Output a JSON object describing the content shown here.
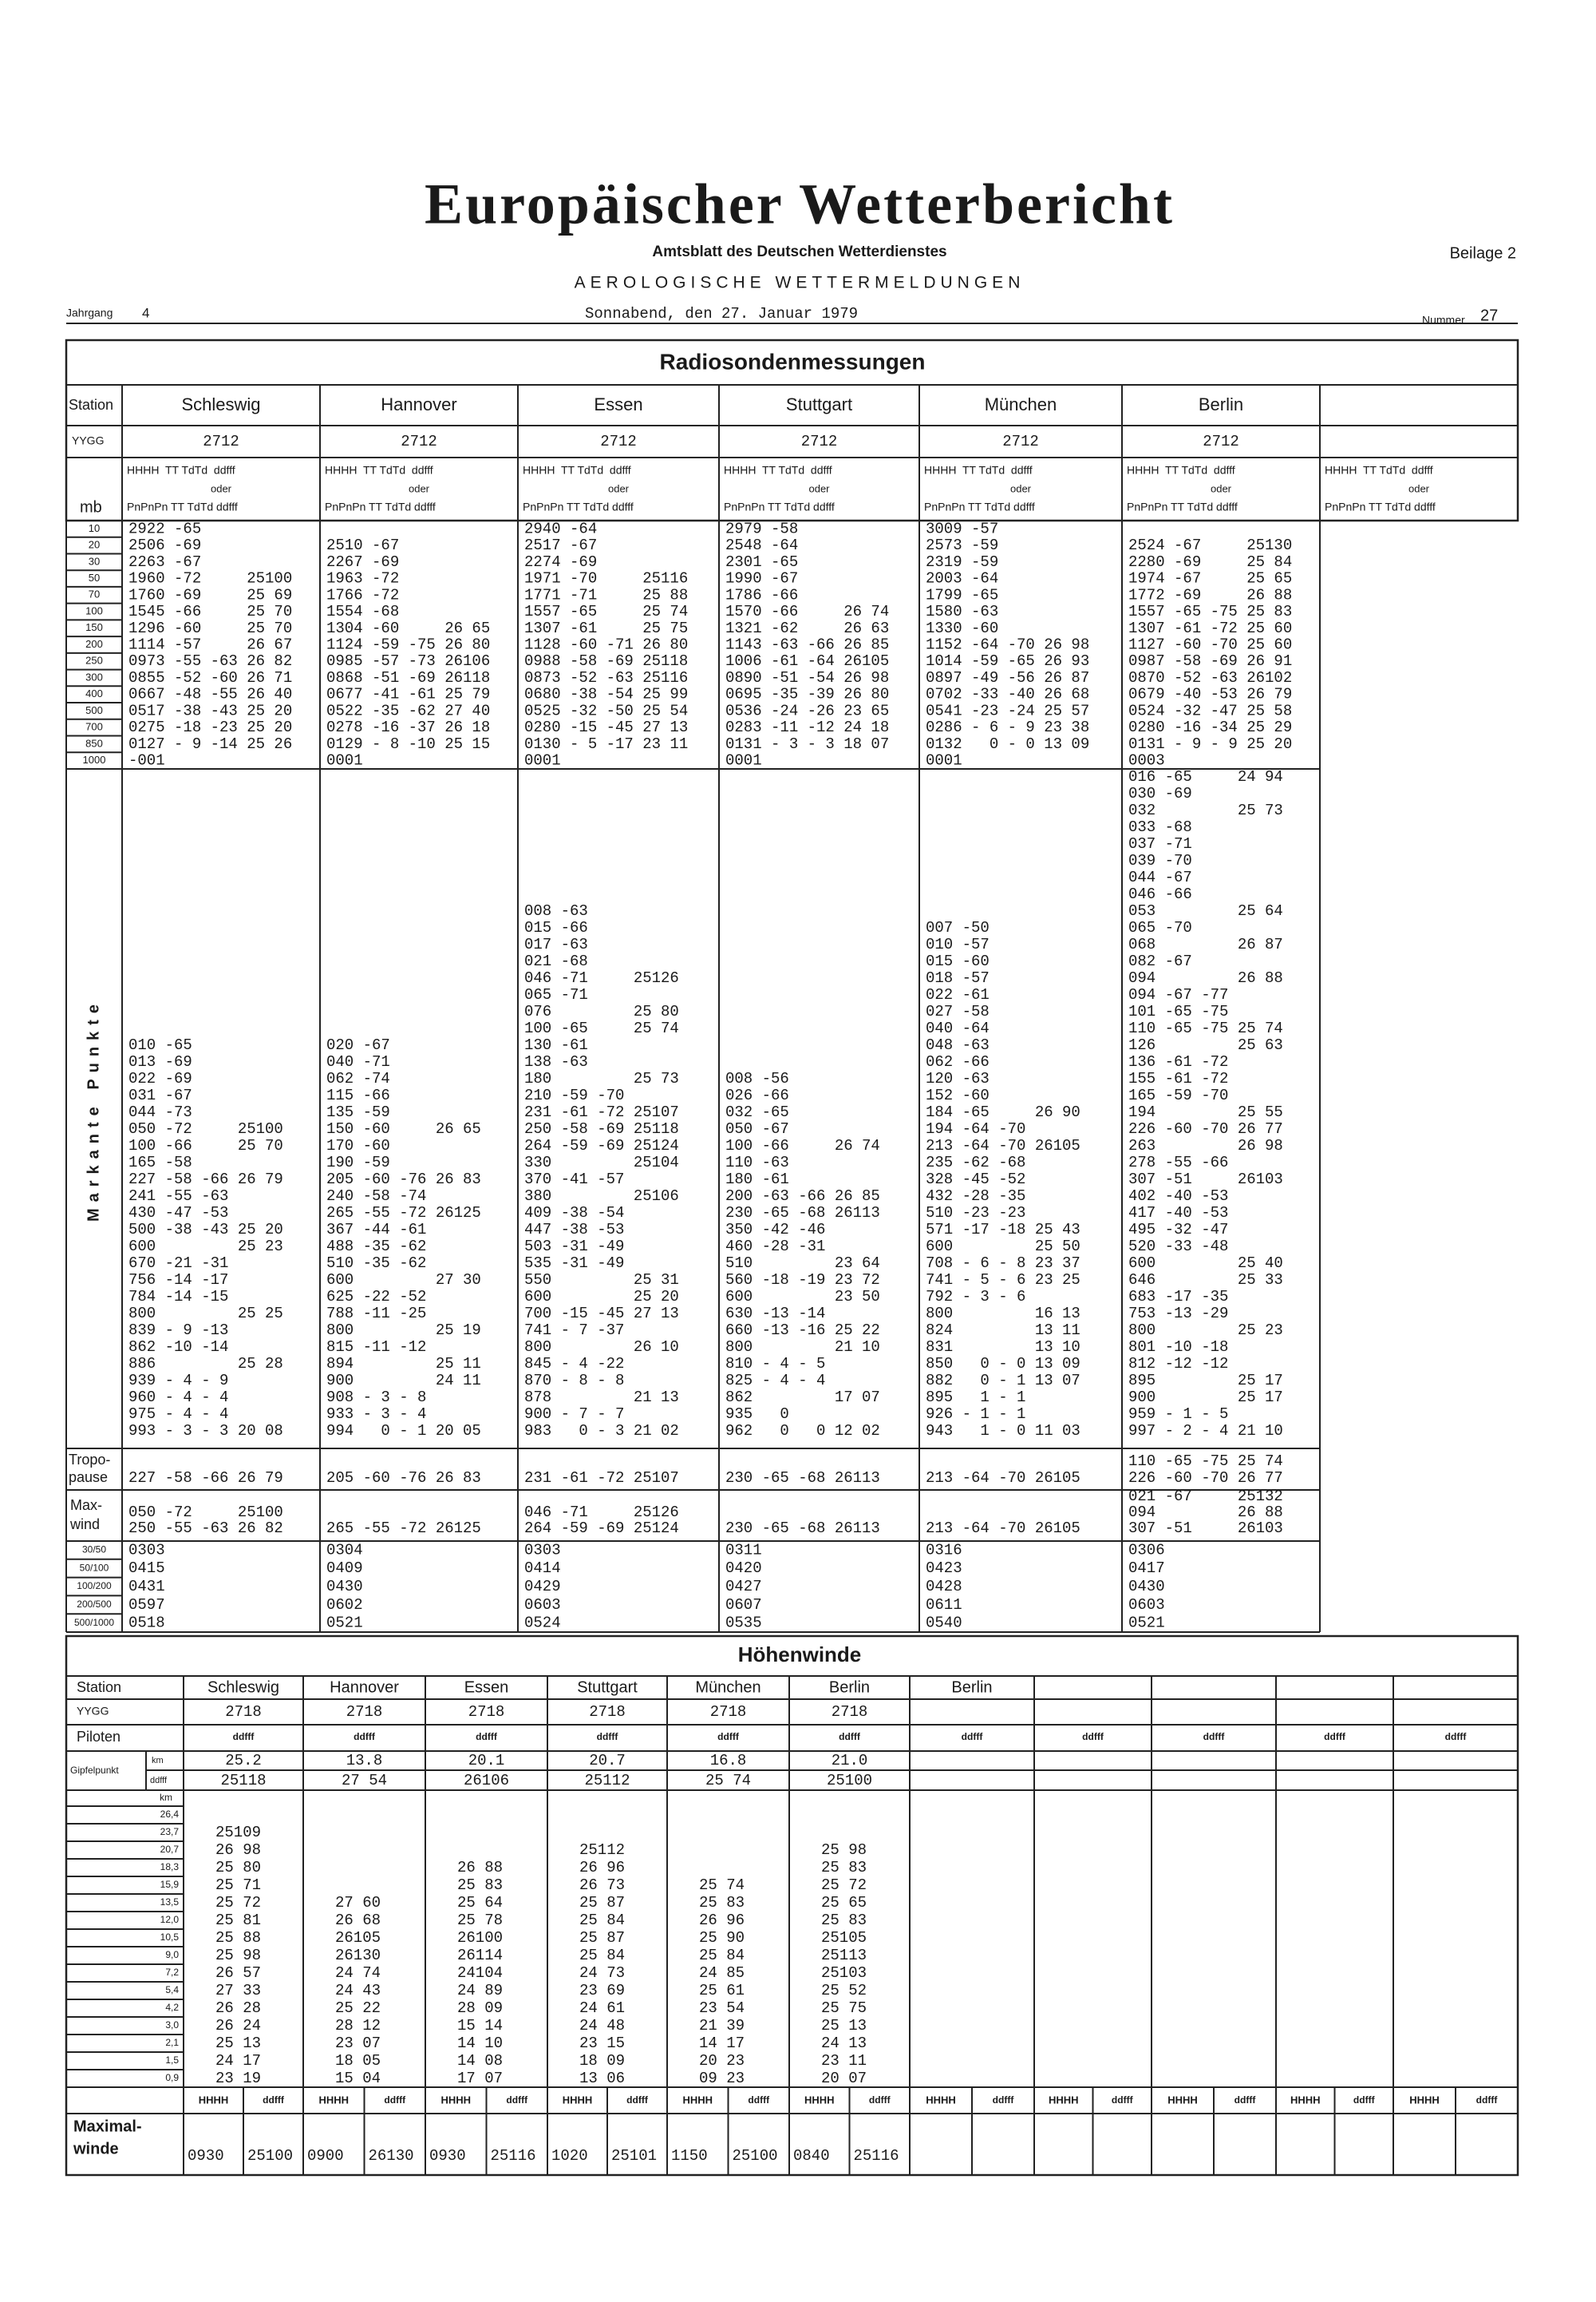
{
  "header": {
    "title": "Europäischer Wetterbericht",
    "subtitle": "Amtsblatt des Deutschen Wetterdienstes",
    "supplement": "Beilage 2",
    "section": "AEROLOGISCHE WETTERMELDUNGEN",
    "volume_label": "Jahrgang",
    "volume": "4",
    "date": "Sonnabend, den 27. Januar 1979",
    "number_label": "Nummer",
    "number": "27"
  },
  "radiosonde": {
    "title": "Radiosondenmessungen",
    "row_labels": {
      "station": "Station",
      "yygg": "YYGG",
      "mb": "mb",
      "significant": "Markante Punkte",
      "tropopause": [
        "Tropo-",
        "pause"
      ],
      "max_wind": [
        "Max-",
        "wind"
      ]
    },
    "column_header": {
      "line1": "HHHH  TT TdTd  ddfff",
      "or": "oder",
      "line2": "PnPnPn TT TdTd ddfff"
    },
    "levels": [
      "10",
      "20",
      "30",
      "50",
      "70",
      "100",
      "150",
      "200",
      "250",
      "300",
      "400",
      "500",
      "700",
      "850",
      "1000"
    ],
    "shear_labels": [
      "30/50",
      "50/100",
      "100/200",
      "200/500",
      "500/1000"
    ],
    "stations": [
      {
        "name": "Schleswig",
        "yygg": "2712",
        "standard": [
          "2922 -65",
          "2506 -69",
          "2263 -67",
          "1960 -72     25100",
          "1760 -69     25 69",
          "1545 -66     25 70",
          "1296 -60     25 70",
          "1114 -57     26 67",
          "0973 -55 -63 26 82",
          "0855 -52 -60 26 71",
          "0667 -48 -55 26 40",
          "0517 -38 -43 25 20",
          "0275 -18 -23 25 20",
          "0127 - 9 -14 25 26",
          "-001"
        ],
        "significant": [
          "010 -65",
          "013 -69",
          "022 -69",
          "031 -67",
          "044 -73",
          "050 -72     25100",
          "100 -66     25 70",
          "165 -58",
          "227 -58 -66 26 79",
          "241 -55 -63",
          "430 -47 -53",
          "500 -38 -43 25 20",
          "600         25 23",
          "670 -21 -31",
          "756 -14 -17",
          "784 -14 -15",
          "800         25 25",
          "839 - 9 -13",
          "862 -10 -14",
          "886         25 28",
          "939 - 4 - 9",
          "960 - 4 - 4",
          "975 - 4 - 4",
          "993 - 3 - 3 20 08"
        ],
        "tropopause": [
          "227 -58 -66 26 79"
        ],
        "max_wind": [
          "050 -72     25100",
          "250 -55 -63 26 82"
        ],
        "shear": [
          "0303",
          "0415",
          "0431",
          "0597",
          "0518"
        ]
      },
      {
        "name": "Hannover",
        "yygg": "2712",
        "standard": [
          null,
          "2510 -67",
          "2267 -69",
          "1963 -72",
          "1766 -72",
          "1554 -68",
          "1304 -60     26 65",
          "1124 -59 -75 26 80",
          "0985 -57 -73 26106",
          "0868 -51 -69 26118",
          "0677 -41 -61 25 79",
          "0522 -35 -62 27 40",
          "0278 -16 -37 26 18",
          "0129 - 8 -10 25 15",
          "0001"
        ],
        "significant": [
          "020 -67",
          "040 -71",
          "062 -74",
          "115 -66",
          "135 -59",
          "150 -60     26 65",
          "170 -60",
          "190 -59",
          "205 -60 -76 26 83",
          "240 -58 -74",
          "265 -55 -72 26125",
          "367 -44 -61",
          "488 -35 -62",
          "510 -35 -62",
          "600         27 30",
          "625 -22 -52",
          "788 -11 -25",
          "800         25 19",
          "815 -11 -12",
          "894         25 11",
          "900         24 11",
          "908 - 3 - 8",
          "933 - 3 - 4",
          "994   0 - 1 20 05"
        ],
        "tropopause": [
          "205 -60 -76 26 83"
        ],
        "max_wind": [
          "265 -55 -72 26125"
        ],
        "shear": [
          "0304",
          "0409",
          "0430",
          "0602",
          "0521"
        ]
      },
      {
        "name": "Essen",
        "yygg": "2712",
        "standard": [
          "2940 -64",
          "2517 -67",
          "2274 -69",
          "1971 -70     25116",
          "1771 -71     25 88",
          "1557 -65     25 74",
          "1307 -61     25 75",
          "1128 -60 -71 26 80",
          "0988 -58 -69 25118",
          "0873 -52 -63 25116",
          "0680 -38 -54 25 99",
          "0525 -32 -50 25 54",
          "0280 -15 -45 27 13",
          "0130 - 5 -17 23 11",
          "0001"
        ],
        "significant": [
          "008 -63",
          "015 -66",
          "017 -63",
          "021 -68",
          "046 -71     25126",
          "065 -71",
          "076         25 80",
          "100 -65     25 74",
          "130 -61",
          "138 -63",
          "180         25 73",
          "210 -59 -70",
          "231 -61 -72 25107",
          "250 -58 -69 25118",
          "264 -59 -69 25124",
          "330         25104",
          "370 -41 -57",
          "380         25106",
          "409 -38 -54",
          "447 -38 -53",
          "503 -31 -49",
          "535 -31 -49",
          "550         25 31",
          "600         25 20",
          "700 -15 -45 27 13",
          "741 - 7 -37",
          "800         26 10",
          "845 - 4 -22",
          "870 - 8 - 8",
          "878         21 13",
          "900 - 7 - 7",
          "983   0 - 3 21 02"
        ],
        "tropopause": [
          "231 -61 -72 25107"
        ],
        "max_wind": [
          "046 -71     25126",
          "264 -59 -69 25124"
        ],
        "shear": [
          "0303",
          "0414",
          "0429",
          "0603",
          "0524"
        ]
      },
      {
        "name": "Stuttgart",
        "yygg": "2712",
        "standard": [
          "2979 -58",
          "2548 -64",
          "2301 -65",
          "1990 -67",
          "1786 -66",
          "1570 -66     26 74",
          "1321 -62     26 63",
          "1143 -63 -66 26 85",
          "1006 -61 -64 26105",
          "0890 -51 -54 26 98",
          "0695 -35 -39 26 80",
          "0536 -24 -26 23 65",
          "0283 -11 -12 24 18",
          "0131 - 3 - 3 18 07",
          "0001"
        ],
        "significant": [
          "008 -56",
          "026 -66",
          "032 -65",
          "050 -67",
          "100 -66     26 74",
          "110 -63",
          "180 -61",
          "200 -63 -66 26 85",
          "230 -65 -68 26113",
          "350 -42 -46",
          "460 -28 -31",
          "510         23 64",
          "560 -18 -19 23 72",
          "600         23 50",
          "630 -13 -14",
          "660 -13 -16 25 22",
          "800         21 10",
          "810 - 4 - 5",
          "825 - 4 - 4",
          "862         17 07",
          "935   0",
          "962   0   0 12 02"
        ],
        "tropopause": [
          "230 -65 -68 26113"
        ],
        "max_wind": [
          "230 -65 -68 26113"
        ],
        "shear": [
          "0311",
          "0420",
          "0427",
          "0607",
          "0535"
        ]
      },
      {
        "name": "München",
        "yygg": "2712",
        "standard": [
          "3009 -57",
          "2573 -59",
          "2319 -59",
          "2003 -64",
          "1799 -65",
          "1580 -63",
          "1330 -60",
          "1152 -64 -70 26 98",
          "1014 -59 -65 26 93",
          "0897 -49 -56 26 87",
          "0702 -33 -40 26 68",
          "0541 -23 -24 25 57",
          "0286 - 6 - 9 23 38",
          "0132   0 - 0 13 09",
          "0001"
        ],
        "significant": [
          "007 -50",
          "010 -57",
          "015 -60",
          "018 -57",
          "022 -61",
          "027 -58",
          "040 -64",
          "048 -63",
          "062 -66",
          "120 -63",
          "152 -60",
          "184 -65     26 90",
          "194 -64 -70",
          "213 -64 -70 26105",
          "235 -62 -68",
          "328 -45 -52",
          "432 -28 -35",
          "510 -23 -23",
          "571 -17 -18 25 43",
          "600         25 50",
          "708 - 6 - 8 23 37",
          "741 - 5 - 6 23 25",
          "792 - 3 - 6",
          "800         16 13",
          "824         13 11",
          "831         13 10",
          "850   0 - 0 13 09",
          "882   0 - 1 13 07",
          "895   1 - 1",
          "926 - 1 - 1",
          "943   1 - 0 11 03"
        ],
        "tropopause": [
          "213 -64 -70 26105"
        ],
        "max_wind": [
          "213 -64 -70 26105"
        ],
        "shear": [
          "0316",
          "0423",
          "0428",
          "0611",
          "0540"
        ]
      },
      {
        "name": "Berlin",
        "yygg": "2712",
        "standard": [
          null,
          "2524 -67     25130",
          "2280 -69     25 84",
          "1974 -67     25 65",
          "1772 -69     26 88",
          "1557 -65 -75 25 83",
          "1307 -61 -72 25 60",
          "1127 -60 -70 25 60",
          "0987 -58 -69 26 91",
          "0870 -52 -63 26102",
          "0679 -40 -53 26 79",
          "0524 -32 -47 25 58",
          "0280 -16 -34 25 29",
          "0131 - 9 - 9 25 20",
          "0003"
        ],
        "significant": [
          "016 -65     24 94",
          "030 -69",
          "032         25 73",
          "033 -68",
          "037 -71",
          "039 -70",
          "044 -67",
          "046 -66",
          "053         25 64",
          "065 -70",
          "068         26 87",
          "082 -67",
          "094         26 88",
          "094 -67 -77",
          "101 -65 -75",
          "110 -65 -75 25 74",
          "126         25 63",
          "136 -61 -72",
          "155 -61 -72",
          "165 -59 -70",
          "194         25 55",
          "226 -60 -70 26 77",
          "263         26 98",
          "278 -55 -66",
          "307 -51     26103",
          "402 -40 -53",
          "417 -40 -53",
          "495 -32 -47",
          "520 -33 -48",
          "600         25 40",
          "646         25 33",
          "683 -17 -35",
          "753 -13 -29",
          "800         25 23",
          "801 -10 -18",
          "812 -12 -12",
          "895         25 17",
          "900         25 17",
          "959 - 1 - 5",
          "997 - 2 - 4 21 10"
        ],
        "tropopause": [
          "110 -65 -75 25 74",
          "226 -60 -70 26 77"
        ],
        "max_wind": [
          "021 -67     25132",
          "094         26 88",
          "307 -51     26103"
        ],
        "shear": [
          "0306",
          "0417",
          "0430",
          "0603",
          "0521"
        ]
      }
    ]
  },
  "upper_winds": {
    "title": "Höhenwinde",
    "labels": {
      "station": "Station",
      "yygg": "YYGG",
      "pilots": "Piloten",
      "summit": "Gipfelpunkt",
      "km": "km",
      "ddfff": "ddfff",
      "heights_unit": "km",
      "max_winds": [
        "Maximal-",
        "winde"
      ],
      "hhhh": "HHHH"
    },
    "heights": [
      "26,4",
      "23,7",
      "20,7",
      "18,3",
      "15,9",
      "13,5",
      "12,0",
      "10,5",
      "9,0",
      "7,2",
      "5,4",
      "4,2",
      "3,0",
      "2,1",
      "1,5",
      "0,9"
    ],
    "stations": [
      {
        "name": "Schleswig",
        "yygg": "2718",
        "summit_km": "25.2",
        "summit_wind": "25118",
        "winds": [
          null,
          "25109",
          "26 98",
          "25 80",
          "25 71",
          "25 72",
          "25 81",
          "25 88",
          "25 98",
          "26 57",
          "27 33",
          "26 28",
          "26 24",
          "25 13",
          "24 17",
          "23 19"
        ],
        "max_height": "0930",
        "max_wind": "25100"
      },
      {
        "name": "Hannover",
        "yygg": "2718",
        "summit_km": "13.8",
        "summit_wind": "27 54",
        "winds": [
          null,
          null,
          null,
          null,
          null,
          "27 60",
          "26 68",
          "26105",
          "26130",
          "24 74",
          "24 43",
          "25 22",
          "28 12",
          "23 07",
          "18 05",
          "15 04"
        ],
        "max_height": "0900",
        "max_wind": "26130"
      },
      {
        "name": "Essen",
        "yygg": "2718",
        "summit_km": "20.1",
        "summit_wind": "26106",
        "winds": [
          null,
          null,
          null,
          "26 88",
          "25 83",
          "25 64",
          "25 78",
          "26100",
          "26114",
          "24104",
          "24 89",
          "28 09",
          "15 14",
          "14 10",
          "14 08",
          "17 07"
        ],
        "max_height": "0930",
        "max_wind": "25116"
      },
      {
        "name": "Stuttgart",
        "yygg": "2718",
        "summit_km": "20.7",
        "summit_wind": "25112",
        "winds": [
          null,
          null,
          "25112",
          "26 96",
          "26 73",
          "25 87",
          "25 84",
          "25 87",
          "25 84",
          "24 73",
          "23 69",
          "24 61",
          "24 48",
          "23 15",
          "18 09",
          "13 06"
        ],
        "max_height": "1020",
        "max_wind": "25101"
      },
      {
        "name": "München",
        "yygg": "2718",
        "summit_km": "16.8",
        "summit_wind": "25 74",
        "winds": [
          null,
          null,
          null,
          null,
          "25 74",
          "25 83",
          "26 96",
          "25 90",
          "25 84",
          "24 85",
          "25 61",
          "23 54",
          "21 39",
          "14 17",
          "20 23",
          "09 23"
        ],
        "max_height": "1150",
        "max_wind": "25100"
      },
      {
        "name": "Berlin",
        "yygg": "2718",
        "summit_km": "21.0",
        "summit_wind": "25100",
        "winds": [
          null,
          null,
          "25 98",
          "25 83",
          "25 72",
          "25 65",
          "25 83",
          "25105",
          "25113",
          "25103",
          "25 52",
          "25 75",
          "25 13",
          "24 13",
          "23 11",
          "20 07"
        ],
        "max_height": "0840",
        "max_wind": "25116"
      },
      {
        "name": "Berlin"
      }
    ]
  }
}
